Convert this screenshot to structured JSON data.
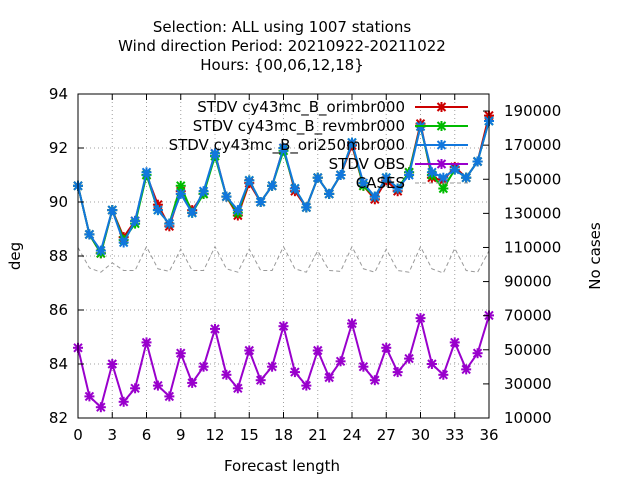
{
  "chart_data": {
    "type": "line",
    "title_lines": [
      "Selection: ALL using  1007 stations",
      "Wind direction   Period: 20210922-20211022",
      "Hours: {00,06,12,18}"
    ],
    "xlabel": "Forecast length",
    "ylabel": "deg",
    "y2label": "No cases",
    "xlim": [
      0,
      36
    ],
    "ylim": [
      82,
      94
    ],
    "y2lim": [
      10000,
      200000
    ],
    "xticks": [
      "0",
      "3",
      "6",
      "9",
      "12",
      "15",
      "18",
      "21",
      "24",
      "27",
      "30",
      "33",
      "36"
    ],
    "yticks": [
      "82",
      "84",
      "86",
      "88",
      "90",
      "92",
      "94"
    ],
    "y2ticks": [
      "10000",
      "30000",
      "50000",
      "70000",
      "90000",
      "110000",
      "130000",
      "150000",
      "170000",
      "190000"
    ],
    "grid": true,
    "legend_position": "top-right",
    "x": [
      0,
      1,
      2,
      3,
      4,
      5,
      6,
      7,
      8,
      9,
      10,
      11,
      12,
      13,
      14,
      15,
      16,
      17,
      18,
      19,
      20,
      21,
      22,
      23,
      24,
      25,
      26,
      27,
      28,
      29,
      30,
      31,
      32,
      33,
      34,
      35,
      36
    ],
    "series": [
      {
        "name": "STDV cy43mc_B_orimbr000",
        "color": "#cc0000",
        "axis": "y",
        "values": [
          90.6,
          88.8,
          88.1,
          89.7,
          88.7,
          89.3,
          91.0,
          89.9,
          89.1,
          90.4,
          89.7,
          90.3,
          91.8,
          90.2,
          89.5,
          90.7,
          90.0,
          90.6,
          92.0,
          90.4,
          89.8,
          90.9,
          90.3,
          91.0,
          92.1,
          90.6,
          90.1,
          90.8,
          90.4,
          91.1,
          92.9,
          90.9,
          90.8,
          91.3,
          90.9,
          91.5,
          93.2
        ]
      },
      {
        "name": "STDV cy43mc_B_revmbr000",
        "color": "#00bb00",
        "axis": "y",
        "values": [
          90.6,
          88.8,
          88.1,
          89.7,
          88.6,
          89.2,
          91.0,
          89.7,
          89.2,
          90.6,
          89.6,
          90.3,
          91.7,
          90.2,
          89.6,
          90.8,
          90.0,
          90.6,
          91.9,
          90.5,
          89.8,
          90.9,
          90.3,
          91.0,
          92.2,
          90.6,
          90.2,
          90.9,
          90.5,
          91.1,
          92.8,
          91.0,
          90.5,
          91.2,
          90.9,
          91.5,
          93.0
        ]
      },
      {
        "name": "STDV cy43mc_B_ori250mbr000",
        "color": "#1177dd",
        "axis": "y",
        "values": [
          90.6,
          88.8,
          88.2,
          89.7,
          88.5,
          89.3,
          91.1,
          89.7,
          89.2,
          90.3,
          89.6,
          90.4,
          91.8,
          90.2,
          89.7,
          90.8,
          90.0,
          90.6,
          92.0,
          90.5,
          89.8,
          90.9,
          90.3,
          91.0,
          92.2,
          90.7,
          90.2,
          90.9,
          90.5,
          91.0,
          92.8,
          91.1,
          90.9,
          91.2,
          90.9,
          91.5,
          93.0
        ]
      },
      {
        "name": "STDV OBS",
        "color": "#9900cc",
        "axis": "y",
        "values": [
          84.6,
          82.8,
          82.4,
          84.0,
          82.6,
          83.1,
          84.8,
          83.2,
          82.8,
          84.4,
          83.3,
          83.9,
          85.3,
          83.6,
          83.1,
          84.5,
          83.4,
          83.9,
          85.4,
          83.7,
          83.2,
          84.5,
          83.5,
          84.1,
          85.5,
          83.9,
          83.4,
          84.6,
          83.7,
          84.2,
          85.7,
          84.0,
          83.6,
          84.8,
          83.8,
          84.4,
          85.8
        ]
      },
      {
        "name": "CASES",
        "color": "#999999",
        "axis": "y2",
        "values": [
          110000,
          98000,
          95500,
          101000,
          96500,
          96500,
          110500,
          97500,
          96000,
          109000,
          96500,
          96500,
          110500,
          97500,
          95500,
          109000,
          96500,
          96500,
          110500,
          97500,
          95500,
          108000,
          96500,
          96000,
          110500,
          97500,
          95500,
          109000,
          96500,
          95500,
          110500,
          97500,
          95000,
          109500,
          96500,
          95500,
          108000
        ]
      }
    ]
  }
}
